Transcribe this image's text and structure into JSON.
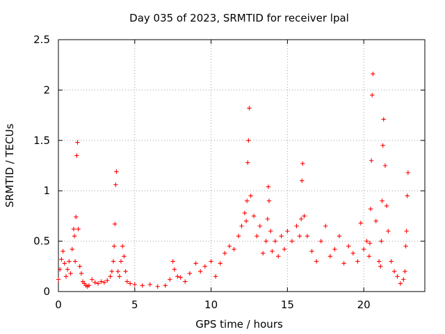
{
  "chart_data": {
    "type": "scatter",
    "title": "Day 035 of 2023, SRMTID for receiver lpal",
    "xlabel": "GPS time / hours",
    "ylabel": "SRMTID / TECUs",
    "xlim": [
      0,
      24
    ],
    "ylim": [
      0,
      2.5
    ],
    "x_ticks": [
      0,
      5,
      10,
      15,
      20
    ],
    "x_tick_labels": [
      "0",
      "5",
      "10",
      "15",
      "20"
    ],
    "y_ticks": [
      0,
      0.5,
      1,
      1.5,
      2,
      2.5
    ],
    "y_tick_labels": [
      "0",
      "0.5",
      "1",
      "1.5",
      "2",
      "2.5"
    ],
    "grid": true,
    "marker": "plus",
    "series": [
      {
        "name": "lpal",
        "color": "#ff0000",
        "x": [
          0.0,
          0.1,
          0.2,
          0.3,
          0.4,
          0.5,
          0.6,
          0.7,
          0.8,
          0.9,
          1.0,
          1.05,
          1.1,
          1.15,
          1.2,
          1.25,
          1.3,
          1.4,
          1.5,
          1.6,
          1.7,
          1.8,
          1.9,
          2.0,
          2.2,
          2.4,
          2.6,
          2.8,
          3.0,
          3.2,
          3.4,
          3.5,
          3.6,
          3.65,
          3.7,
          3.75,
          3.8,
          3.9,
          4.0,
          4.1,
          4.2,
          4.3,
          4.4,
          4.5,
          4.7,
          5.0,
          5.5,
          6.0,
          6.5,
          7.0,
          7.3,
          7.5,
          7.6,
          7.8,
          8.0,
          8.3,
          8.6,
          9.0,
          9.3,
          9.6,
          10.0,
          10.3,
          10.6,
          10.9,
          11.2,
          11.5,
          11.8,
          12.0,
          12.2,
          12.3,
          12.35,
          12.4,
          12.45,
          12.5,
          12.6,
          12.8,
          13.0,
          13.2,
          13.4,
          13.6,
          13.7,
          13.75,
          13.8,
          13.9,
          14.0,
          14.2,
          14.4,
          14.6,
          14.8,
          15.0,
          15.3,
          15.6,
          15.8,
          15.9,
          15.95,
          16.0,
          16.1,
          16.3,
          16.6,
          16.9,
          17.2,
          17.5,
          17.8,
          18.1,
          18.4,
          18.7,
          19.0,
          19.3,
          19.6,
          19.8,
          20.0,
          20.2,
          20.35,
          20.4,
          20.45,
          20.5,
          20.55,
          20.6,
          20.8,
          21.0,
          21.1,
          21.15,
          21.2,
          21.25,
          21.3,
          21.4,
          21.5,
          21.6,
          21.8,
          22.0,
          22.2,
          22.4,
          22.6,
          22.7,
          22.75,
          22.8,
          22.85,
          22.9
        ],
        "y": [
          0.12,
          0.22,
          0.32,
          0.4,
          0.28,
          0.15,
          0.22,
          0.3,
          0.18,
          0.42,
          0.62,
          0.55,
          0.3,
          0.74,
          1.35,
          1.48,
          0.62,
          0.25,
          0.18,
          0.1,
          0.08,
          0.06,
          0.05,
          0.06,
          0.12,
          0.09,
          0.08,
          0.1,
          0.09,
          0.11,
          0.15,
          0.2,
          0.3,
          0.45,
          0.67,
          1.06,
          1.19,
          0.2,
          0.15,
          0.3,
          0.45,
          0.35,
          0.2,
          0.1,
          0.08,
          0.07,
          0.06,
          0.07,
          0.05,
          0.06,
          0.12,
          0.3,
          0.22,
          0.15,
          0.14,
          0.1,
          0.18,
          0.28,
          0.2,
          0.25,
          0.3,
          0.15,
          0.28,
          0.38,
          0.45,
          0.42,
          0.55,
          0.65,
          0.78,
          0.7,
          0.9,
          1.28,
          1.5,
          1.82,
          0.95,
          0.75,
          0.55,
          0.65,
          0.38,
          0.5,
          0.72,
          1.04,
          0.9,
          0.6,
          0.4,
          0.5,
          0.35,
          0.55,
          0.42,
          0.6,
          0.5,
          0.65,
          0.55,
          0.72,
          1.1,
          1.27,
          0.75,
          0.55,
          0.4,
          0.3,
          0.5,
          0.65,
          0.35,
          0.42,
          0.55,
          0.28,
          0.45,
          0.38,
          0.3,
          0.68,
          0.42,
          0.5,
          0.35,
          0.48,
          0.82,
          1.3,
          1.95,
          2.16,
          0.7,
          0.3,
          0.25,
          0.5,
          0.9,
          1.45,
          1.71,
          1.25,
          0.85,
          0.6,
          0.3,
          0.2,
          0.15,
          0.08,
          0.12,
          0.2,
          0.45,
          0.6,
          0.95,
          1.18
        ]
      }
    ]
  }
}
